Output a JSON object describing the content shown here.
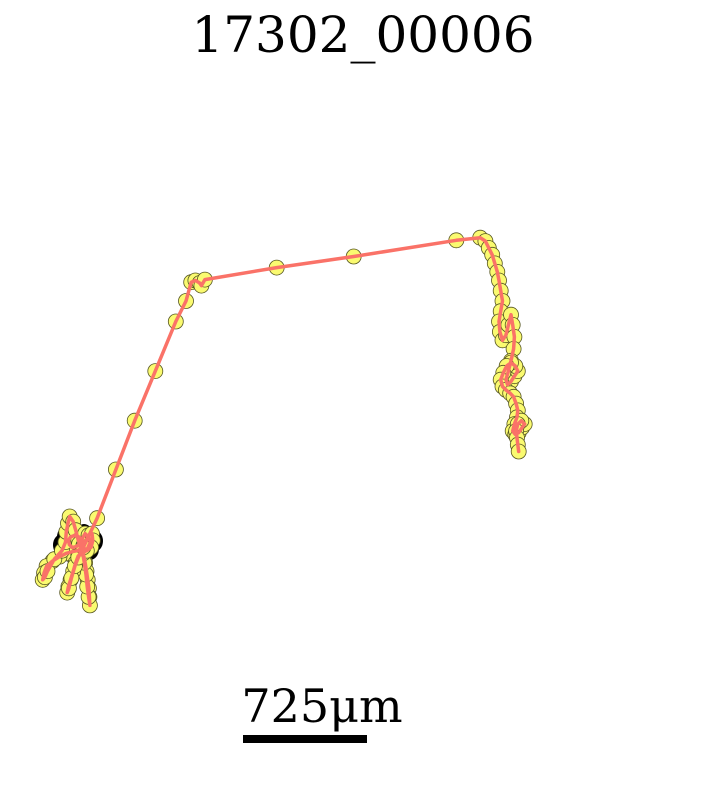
{
  "title": "17302_00006",
  "scale_bar": {
    "label": "725μm",
    "length_um": 725
  },
  "colors": {
    "path": "#fa7268",
    "point_fill": "#fafa70",
    "point_stroke": "#555522",
    "start_marker": "#000000",
    "scale_bar": "#000000"
  },
  "chart_data": {
    "type": "scatter",
    "title": "17302_00006",
    "axes_visible": false,
    "units": "μm",
    "series": [
      {
        "points": [
          [
            0,
            1335
          ],
          [
            -20,
            1355
          ],
          [
            -45,
            1362
          ],
          [
            -62,
            1345
          ],
          [
            -68,
            1320
          ],
          [
            -55,
            1300
          ],
          [
            -30,
            1290
          ],
          [
            -8,
            1298
          ],
          [
            10,
            1312
          ],
          [
            20,
            1330
          ],
          [
            18,
            1352
          ],
          [
            5,
            1368
          ],
          [
            -15,
            1380
          ],
          [
            -40,
            1384
          ],
          [
            -80,
            1395
          ],
          [
            -120,
            1415
          ],
          [
            -160,
            1440
          ],
          [
            -195,
            1470
          ],
          [
            -210,
            1510
          ],
          [
            -218,
            1550
          ],
          [
            -205,
            1535
          ],
          [
            -190,
            1500
          ],
          [
            -150,
            1430
          ],
          [
            -105,
            1380
          ],
          [
            -85,
            1330
          ],
          [
            -80,
            1270
          ],
          [
            -70,
            1220
          ],
          [
            -60,
            1180
          ],
          [
            -40,
            1210
          ],
          [
            -25,
            1260
          ],
          [
            -10,
            1320
          ],
          [
            5,
            1360
          ],
          [
            20,
            1400
          ],
          [
            30,
            1450
          ],
          [
            38,
            1500
          ],
          [
            45,
            1550
          ],
          [
            52,
            1600
          ],
          [
            55,
            1650
          ],
          [
            58,
            1700
          ],
          [
            50,
            1650
          ],
          [
            42,
            1590
          ],
          [
            35,
            1520
          ],
          [
            25,
            1450
          ],
          [
            15,
            1390
          ],
          [
            -5,
            1340
          ],
          [
            30,
            1280
          ],
          [
            50,
            1300
          ],
          [
            60,
            1330
          ],
          [
            45,
            1365
          ],
          [
            20,
            1395
          ],
          [
            -10,
            1410
          ],
          [
            -25,
            1450
          ],
          [
            -40,
            1500
          ],
          [
            -55,
            1550
          ],
          [
            -68,
            1590
          ],
          [
            -75,
            1625
          ],
          [
            -65,
            1600
          ],
          [
            -50,
            1540
          ],
          [
            -30,
            1470
          ],
          [
            -10,
            1420
          ],
          [
            20,
            1350
          ],
          [
            50,
            1290
          ],
          [
            70,
            1280
          ],
          [
            75,
            1320
          ],
          [
            65,
            1360
          ],
          [
            40,
            1380
          ],
          [
            20,
            1360
          ],
          [
            100,
            1190
          ],
          [
            210,
            905
          ],
          [
            320,
            620
          ],
          [
            440,
            330
          ],
          [
            560,
            40
          ],
          [
            620,
            -80
          ],
          [
            650,
            -190
          ],
          [
            675,
            -200
          ],
          [
            700,
            -185
          ],
          [
            710,
            -170
          ],
          [
            730,
            -205
          ],
          [
            1150,
            -275
          ],
          [
            1600,
            -340
          ],
          [
            2200,
            -435
          ],
          [
            2340,
            -450
          ],
          [
            2370,
            -430
          ],
          [
            2390,
            -390
          ],
          [
            2410,
            -350
          ],
          [
            2425,
            -300
          ],
          [
            2440,
            -250
          ],
          [
            2450,
            -200
          ],
          [
            2460,
            -140
          ],
          [
            2470,
            -80
          ],
          [
            2460,
            -20
          ],
          [
            2450,
            40
          ],
          [
            2455,
            100
          ],
          [
            2470,
            150
          ],
          [
            2490,
            120
          ],
          [
            2505,
            60
          ],
          [
            2520,
            0
          ],
          [
            2530,
            60
          ],
          [
            2540,
            130
          ],
          [
            2535,
            200
          ],
          [
            2520,
            270
          ],
          [
            2505,
            330
          ],
          [
            2490,
            380
          ],
          [
            2500,
            410
          ],
          [
            2520,
            390
          ],
          [
            2540,
            360
          ],
          [
            2560,
            330
          ],
          [
            2545,
            300
          ],
          [
            2520,
            280
          ],
          [
            2495,
            300
          ],
          [
            2475,
            340
          ],
          [
            2460,
            380
          ],
          [
            2470,
            420
          ],
          [
            2490,
            440
          ],
          [
            2515,
            460
          ],
          [
            2535,
            480
          ],
          [
            2550,
            520
          ],
          [
            2560,
            560
          ],
          [
            2555,
            600
          ],
          [
            2540,
            640
          ],
          [
            2530,
            680
          ],
          [
            2545,
            700
          ],
          [
            2565,
            690
          ],
          [
            2585,
            660
          ],
          [
            2600,
            640
          ],
          [
            2580,
            620
          ],
          [
            2560,
            640
          ],
          [
            2550,
            680
          ],
          [
            2555,
            720
          ],
          [
            2560,
            760
          ],
          [
            2565,
            800
          ]
        ]
      }
    ],
    "start_marker": "filled black cluster",
    "end_marker": "none"
  }
}
